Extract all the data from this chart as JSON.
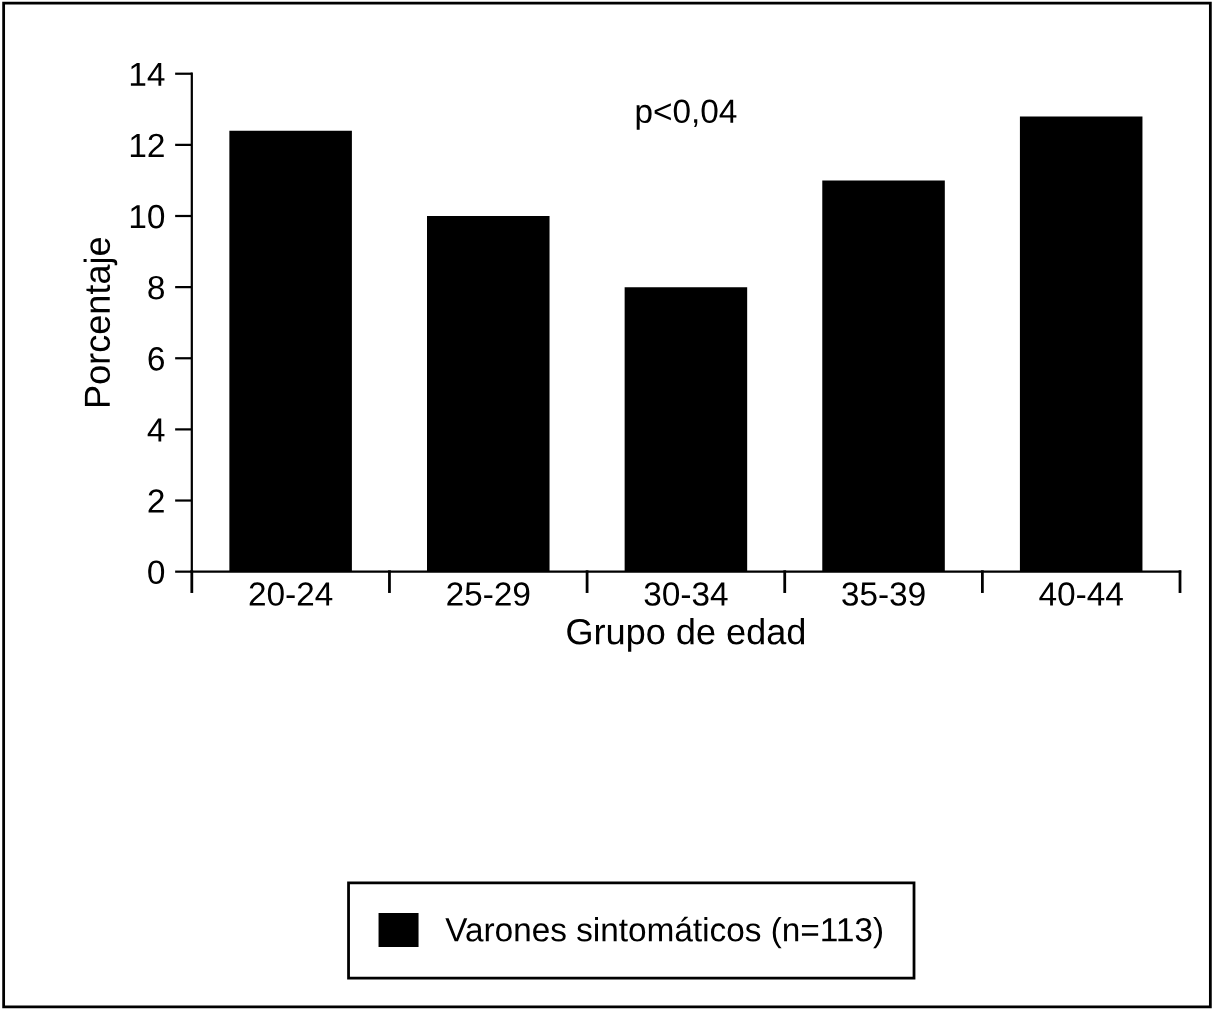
{
  "chart_data": {
    "type": "bar",
    "xlabel": "Grupo de edad",
    "ylabel": "Porcentaje",
    "categories": [
      "20-24",
      "25-29",
      "30-34",
      "35-39",
      "40-44"
    ],
    "series": [
      {
        "name": "Varones sintomáticos (n=113)",
        "color": "#000000",
        "values": [
          12.4,
          10,
          8,
          11,
          12.8
        ]
      }
    ],
    "ylim": [
      0,
      14
    ],
    "yticks": [
      0,
      2,
      4,
      6,
      8,
      10,
      12,
      14
    ],
    "grid": false,
    "legend": "bottom",
    "annotations": [
      "p<0,04"
    ]
  }
}
